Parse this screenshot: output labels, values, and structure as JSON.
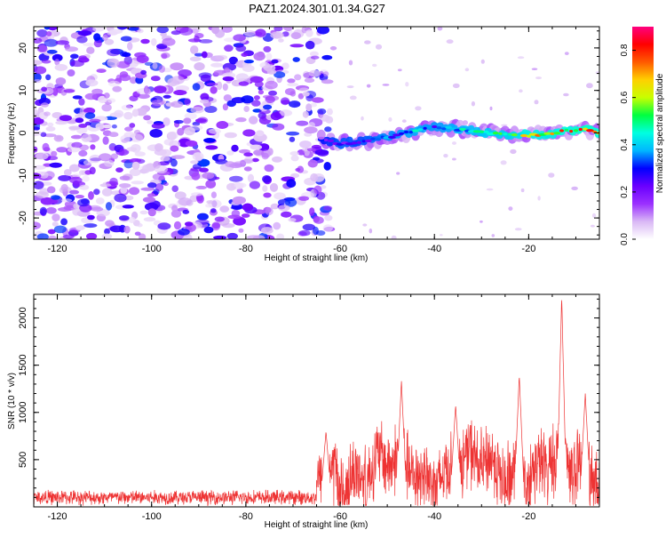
{
  "page_title": "PAZ1.2024.301.01.34.G27",
  "chart_data": [
    {
      "type": "heatmap",
      "xlabel": "Height of straight line (km)",
      "ylabel": "Frequency (Hz)",
      "xlim": [
        -125,
        -5
      ],
      "ylim": [
        -25,
        25
      ],
      "x_ticks": [
        "-120",
        "-100",
        "-80",
        "-60",
        "-40",
        "-20"
      ],
      "x_tick_values": [
        -120,
        -100,
        -80,
        -60,
        -40,
        -20
      ],
      "y_ticks": [
        "-20",
        "-10",
        "0",
        "10",
        "20"
      ],
      "y_tick_values": [
        -20,
        -10,
        0,
        10,
        20
      ],
      "colorbar": {
        "label": "Normalized spectral amplitude",
        "range": [
          0.0,
          0.9
        ],
        "ticks": [
          "0.0",
          "0.2",
          "0.4",
          "0.6",
          "0.8"
        ],
        "tick_values": [
          0.0,
          0.2,
          0.4,
          0.6,
          0.8
        ],
        "colors": [
          "#ffffff",
          "#d9b8f5",
          "#9b30ff",
          "#6a00ff",
          "#0000ff",
          "#00b7ff",
          "#00ffe0",
          "#00ff40",
          "#c8ff00",
          "#ffd000",
          "#ff5a00",
          "#ff0000",
          "#ff007f"
        ]
      },
      "noise_region_x": [
        -125,
        -65
      ],
      "signal_ridge": {
        "x": [
          -64,
          -60,
          -56,
          -52,
          -48,
          -44,
          -40,
          -36,
          -32,
          -28,
          -24,
          -20,
          -16,
          -12,
          -8,
          -5
        ],
        "frequency": [
          -1.5,
          -2.5,
          -2.0,
          -1.5,
          -0.5,
          0.5,
          1.5,
          1.0,
          0.5,
          0.0,
          -0.5,
          -0.5,
          -0.3,
          0.5,
          1.0,
          0.0
        ],
        "amplitude": [
          0.15,
          0.3,
          0.25,
          0.35,
          0.4,
          0.45,
          0.4,
          0.45,
          0.5,
          0.55,
          0.6,
          0.75,
          0.7,
          0.8,
          0.85,
          0.8
        ]
      }
    },
    {
      "type": "line",
      "xlabel": "Height of straight line (km)",
      "ylabel": "SNR (10 * v/v)",
      "xlim": [
        -125,
        -5
      ],
      "ylim": [
        0,
        2250
      ],
      "x_ticks": [
        "-120",
        "-100",
        "-80",
        "-60",
        "-40",
        "-20"
      ],
      "x_tick_values": [
        -120,
        -100,
        -80,
        -60,
        -40,
        -20
      ],
      "y_ticks": [
        "500",
        "1000",
        "1500",
        "2000"
      ],
      "y_tick_values": [
        500,
        1000,
        1500,
        2000
      ],
      "series_color": "#ee3333",
      "segments": [
        {
          "x_from": -125,
          "x_to": -65,
          "base": 100,
          "spread": 90
        },
        {
          "x_from": -65,
          "x_to": -62,
          "base": 300,
          "spread": 350
        },
        {
          "x_from": -62,
          "x_to": -5,
          "base": 400,
          "spread": 450
        }
      ],
      "peaks": [
        {
          "x": -63.0,
          "value": 800
        },
        {
          "x": -47.0,
          "value": 1330
        },
        {
          "x": -35.5,
          "value": 1080
        },
        {
          "x": -22.0,
          "value": 1390
        },
        {
          "x": -13.0,
          "value": 2230
        },
        {
          "x": -8.0,
          "value": 1200
        }
      ]
    }
  ]
}
